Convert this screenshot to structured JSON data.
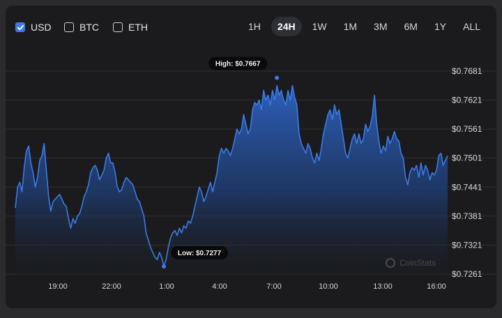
{
  "currencies": [
    {
      "label": "USD",
      "checked": true
    },
    {
      "label": "BTC",
      "checked": false
    },
    {
      "label": "ETH",
      "checked": false
    }
  ],
  "ranges": [
    "1H",
    "24H",
    "1W",
    "1M",
    "3M",
    "6M",
    "1Y",
    "ALL"
  ],
  "active_range": "24H",
  "watermark": "CoinStats",
  "colors": {
    "line": "#3b7be8",
    "fill_top": "#2f64c4",
    "background": "#1b1b1d"
  },
  "chart_data": {
    "type": "area",
    "title": "",
    "xlabel": "",
    "ylabel": "",
    "y_ticks": [
      "$0.7681",
      "$0.7621",
      "$0.7561",
      "$0.7501",
      "$0.7441",
      "$0.7381",
      "$0.7321",
      "$0.7261"
    ],
    "x_ticks": [
      "19:00",
      "22:00",
      "1:00",
      "4:00",
      "7:00",
      "10:00",
      "13:00",
      "16:00"
    ],
    "ylim": [
      0.7251,
      0.7701
    ],
    "high_label": "High: $0.7667",
    "low_label": "Low: $0.7277",
    "high": 0.7667,
    "low": 0.7277,
    "series": [
      {
        "values": [
          0.7398,
          0.7441,
          0.7451,
          0.7431,
          0.7481,
          0.7516,
          0.7526,
          0.7491,
          0.7471,
          0.7441,
          0.7461,
          0.7496,
          0.7506,
          0.7531,
          0.7476,
          0.7421,
          0.7391,
          0.7411,
          0.7416,
          0.7421,
          0.7426,
          0.7416,
          0.7406,
          0.7401,
          0.7376,
          0.7356,
          0.7376,
          0.7366,
          0.7381,
          0.7386,
          0.7401,
          0.7421,
          0.7431,
          0.7446,
          0.7471,
          0.7481,
          0.7486,
          0.7476,
          0.7456,
          0.7466,
          0.7476,
          0.7501,
          0.7511,
          0.7491,
          0.7491,
          0.7471,
          0.7441,
          0.7431,
          0.7436,
          0.7451,
          0.7461,
          0.7456,
          0.7451,
          0.7446,
          0.7431,
          0.7416,
          0.7411,
          0.7396,
          0.7381,
          0.7346,
          0.7331,
          0.7316,
          0.7306,
          0.7296,
          0.7291,
          0.7306,
          0.7296,
          0.7277,
          0.7291,
          0.7316,
          0.7336,
          0.7346,
          0.7351,
          0.7341,
          0.7356,
          0.7346,
          0.7361,
          0.7356,
          0.7371,
          0.7366,
          0.7381,
          0.7401,
          0.7421,
          0.7441,
          0.7431,
          0.7411,
          0.7421,
          0.7436,
          0.7451,
          0.7431,
          0.7451,
          0.7471,
          0.7506,
          0.7521,
          0.7511,
          0.7521,
          0.7516,
          0.7506,
          0.7521,
          0.7541,
          0.7561,
          0.7551,
          0.7561,
          0.7591,
          0.7571,
          0.7551,
          0.7561,
          0.7601,
          0.7616,
          0.7611,
          0.7621,
          0.7601,
          0.7641,
          0.7621,
          0.7631,
          0.7611,
          0.7641,
          0.7621,
          0.7651,
          0.7631,
          0.7641,
          0.7621,
          0.7611,
          0.7641,
          0.7621,
          0.7651,
          0.7626,
          0.7611,
          0.7551,
          0.7531,
          0.7521,
          0.7511,
          0.7531,
          0.7521,
          0.7501,
          0.7491,
          0.7511,
          0.7496,
          0.7521,
          0.7551,
          0.7571,
          0.7591,
          0.7601,
          0.7581,
          0.7611,
          0.7591,
          0.7601,
          0.7571,
          0.7541,
          0.7511,
          0.7501,
          0.7521,
          0.7541,
          0.7551,
          0.7531,
          0.7551,
          0.7531,
          0.7541,
          0.7571,
          0.7556,
          0.7566,
          0.7586,
          0.7631,
          0.7571,
          0.7536,
          0.7511,
          0.7526,
          0.7516,
          0.7546,
          0.7531,
          0.7541,
          0.7556,
          0.7541,
          0.7536,
          0.7511,
          0.7501,
          0.7461,
          0.7446,
          0.7471,
          0.7481,
          0.7476,
          0.7486,
          0.7461,
          0.7491,
          0.7466,
          0.7486,
          0.7476,
          0.7456,
          0.7471,
          0.7466,
          0.7476,
          0.7506,
          0.7511,
          0.7486,
          0.7496,
          0.7506
        ]
      }
    ]
  }
}
